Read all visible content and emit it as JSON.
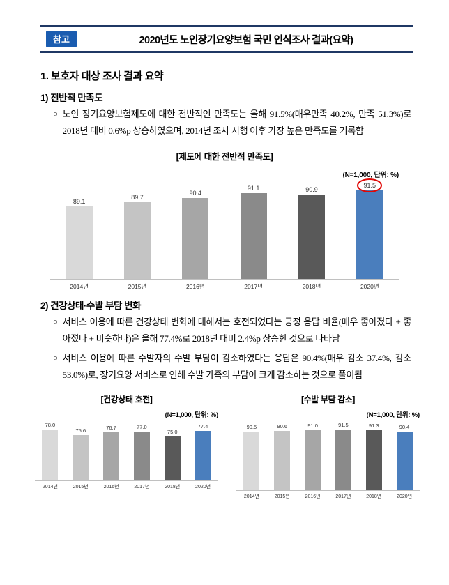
{
  "header": {
    "badge": "참고",
    "title": "2020년도 노인장기요양보험 국민 인식조사 결과(요약)"
  },
  "section1": {
    "heading": "1. 보호자 대상 조사 결과 요약",
    "sub1": {
      "heading": "1) 전반적 만족도",
      "bullet_marker": "○",
      "bullets": [
        "노인 장기요양보험제도에 대한 전반적인 만족도는 올해 91.5%(매우만족 40.2%, 만족 51.3%)로 2018년 대비 0.6%p 상승하였으며, 2014년 조사 시행 이후 가장 높은 만족도를 기록함"
      ]
    },
    "sub2": {
      "heading": "2) 건강상태·수발 부담 변화",
      "bullet_marker": "○",
      "bullets": [
        "서비스 이용에 따른 건강상태 변화에 대해서는 호전되었다는 긍정 응답 비율(매우 좋아졌다 + 좋아졌다 + 비슷하다)은 올해 77.4%로 2018년 대비 2.4%p 상승한 것으로 나타남",
        "서비스 이용에 따른 수발자의 수발 부담이 감소하였다는 응답은 90.4%(매우 감소 37.4%, 감소 53.0%)로, 장기요양 서비스로 인해 수발 가족의 부담이 크게 감소하는 것으로 풀이됨"
      ]
    }
  },
  "colors": {
    "header_border": "#1f3864",
    "badge_blue": "#1a5cb0",
    "highlight_bar_blue": "#4a7ebd",
    "highlight_circle_red": "#e00806"
  },
  "chart_data": [
    {
      "type": "bar",
      "title": "[제도에 대한 전반적 만족도]",
      "note": "(N=1,000, 단위: %)",
      "categories": [
        "2014년",
        "2015년",
        "2016년",
        "2017년",
        "2018년",
        "2020년"
      ],
      "values": [
        89.1,
        89.7,
        90.4,
        91.1,
        90.9,
        91.5
      ],
      "ylim": [
        78,
        94
      ],
      "grid": false,
      "legend": "none",
      "circled_value_index": 5,
      "bar_colors": [
        "#d9d9d9",
        "#c4c4c4",
        "#a6a6a6",
        "#8a8a8a",
        "#595959",
        "#4a7ebd"
      ]
    },
    {
      "type": "bar",
      "title": "[건강상태 호전]",
      "note": "(N=1,000, 단위: %)",
      "categories": [
        "2014년",
        "2015년",
        "2016년",
        "2017년",
        "2018년",
        "2020년"
      ],
      "values": [
        78.0,
        75.6,
        76.7,
        77.0,
        75.0,
        77.4
      ],
      "ylim": [
        55,
        85
      ],
      "grid": false,
      "legend": "none",
      "bar_colors": [
        "#d9d9d9",
        "#c4c4c4",
        "#a6a6a6",
        "#8a8a8a",
        "#595959",
        "#4a7ebd"
      ]
    },
    {
      "type": "bar",
      "title": "[수발 부담 감소]",
      "note": "(N=1,000, 단위: %)",
      "categories": [
        "2014년",
        "2015년",
        "2016년",
        "2017년",
        "2018년",
        "2020년"
      ],
      "values": [
        90.5,
        90.6,
        91.0,
        91.5,
        91.3,
        90.4
      ],
      "ylim": [
        55,
        95
      ],
      "grid": false,
      "legend": "none",
      "bar_colors": [
        "#d9d9d9",
        "#c4c4c4",
        "#a6a6a6",
        "#8a8a8a",
        "#595959",
        "#4a7ebd"
      ]
    }
  ]
}
